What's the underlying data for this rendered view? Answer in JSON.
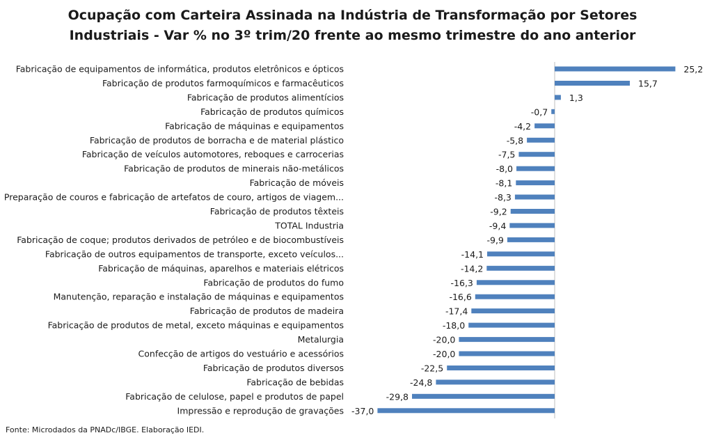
{
  "chart_data": {
    "type": "bar",
    "orientation": "horizontal",
    "title_lines": [
      "Ocupação com Carteira Assinada na Indústria de Transformação por Setores",
      "Industriais - Var % no 3º trim/20 frente ao mesmo trimestre do ano anterior"
    ],
    "categories": [
      "Fabricação de equipamentos de informática, produtos eletrônicos e ópticos",
      "Fabricação de produtos farmoquímicos e farmacêuticos",
      "Fabricação de produtos alimentícios",
      "Fabricação de produtos químicos",
      "Fabricação de máquinas e equipamentos",
      "Fabricação de produtos de borracha e de material plástico",
      "Fabricação de veículos automotores, reboques e carrocerias",
      "Fabricação de produtos de minerais não-metálicos",
      "Fabricação de móveis",
      "Preparação de couros e fabricação de artefatos de couro, artigos de viagem...",
      "Fabricação de produtos têxteis",
      "TOTAL Industria",
      "Fabricação de coque; produtos derivados de petróleo e de biocombustíveis",
      "Fabricação de outros equipamentos de transporte, exceto veículos...",
      "Fabricação de máquinas, aparelhos e materiais elétricos",
      "Fabricação de produtos do fumo",
      "Manutenção, reparação e instalação de máquinas e equipamentos",
      "Fabricação de produtos de madeira",
      "Fabricação de produtos de metal, exceto máquinas e equipamentos",
      "Metalurgia",
      "Confecção de artigos do vestuário e acessórios",
      "Fabricação de produtos diversos",
      "Fabricação de bebidas",
      "Fabricação de celulose, papel e produtos de papel",
      "Impressão e reprodução de gravações"
    ],
    "values": [
      25.2,
      15.7,
      1.3,
      -0.7,
      -4.2,
      -5.8,
      -7.5,
      -8.0,
      -8.1,
      -8.3,
      -9.2,
      -9.4,
      -9.9,
      -14.1,
      -14.2,
      -16.3,
      -16.6,
      -17.4,
      -18.0,
      -20.0,
      -20.0,
      -22.5,
      -24.8,
      -29.8,
      -37.0
    ],
    "value_labels": [
      "25,2",
      "15,7",
      "1,3",
      "-0,7",
      "-4,2",
      "-5,8",
      "-7,5",
      "-8,0",
      "-8,1",
      "-8,3",
      "-9,2",
      "-9,4",
      "-9,9",
      "-14,1",
      "-14,2",
      "-16,3",
      "-16,6",
      "-17,4",
      "-18,0",
      "-20,0",
      "-20,0",
      "-22,5",
      "-24,8",
      "-29,8",
      "-37,0"
    ],
    "xlim": [
      -37.0,
      25.2
    ],
    "bar_color": "#4f81bd",
    "grid": false,
    "legend": "none",
    "source_note": "Fonte: Microdados da PNADc/IBGE. Elaboração IEDI."
  }
}
